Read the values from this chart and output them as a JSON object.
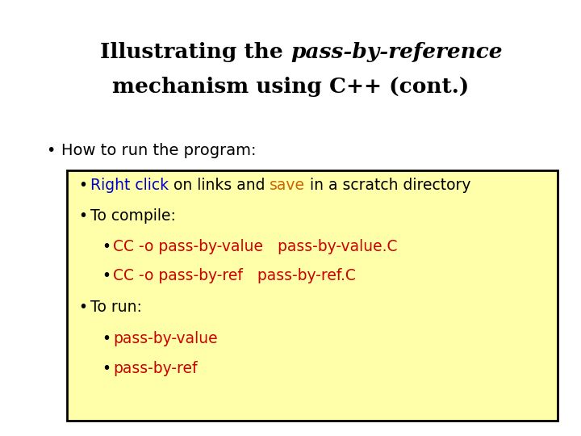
{
  "bg_color": "#ffffff",
  "title_line1_normal": "Illustrating the ",
  "title_line1_italic": "pass-by-reference",
  "title_line2": "mechanism using C++ (cont.)",
  "bullet_main": "How to run the program:",
  "box_bg": "#ffffaa",
  "box_border": "#000000",
  "right_click_color": "#0000cc",
  "save_color": "#cc6600",
  "red_color": "#cc0000",
  "black_color": "#000000"
}
